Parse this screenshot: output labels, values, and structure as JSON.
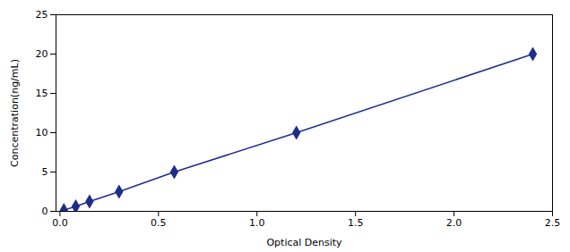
{
  "chart_data": {
    "type": "line",
    "x": [
      0.02,
      0.08,
      0.15,
      0.3,
      0.58,
      1.2,
      2.4
    ],
    "values": [
      0.156,
      0.625,
      1.25,
      2.5,
      5.0,
      10.0,
      20.0
    ],
    "color": "#1F2D8A",
    "marker": "diamond",
    "line_style": "solid",
    "xlabel": "Optical Density",
    "ylabel": "Concentration(ng/mL)",
    "xlim": [
      -0.02,
      2.5
    ],
    "ylim": [
      0,
      25
    ],
    "xticks": [
      {
        "value": 0,
        "label": "0.0"
      },
      0.5,
      {
        "value": 1,
        "label": "1.0"
      },
      1.5,
      {
        "value": 2,
        "label": "2.0"
      },
      2.5
    ],
    "yticks": [
      0,
      5,
      10,
      15,
      20,
      25
    ],
    "grid": false
  }
}
